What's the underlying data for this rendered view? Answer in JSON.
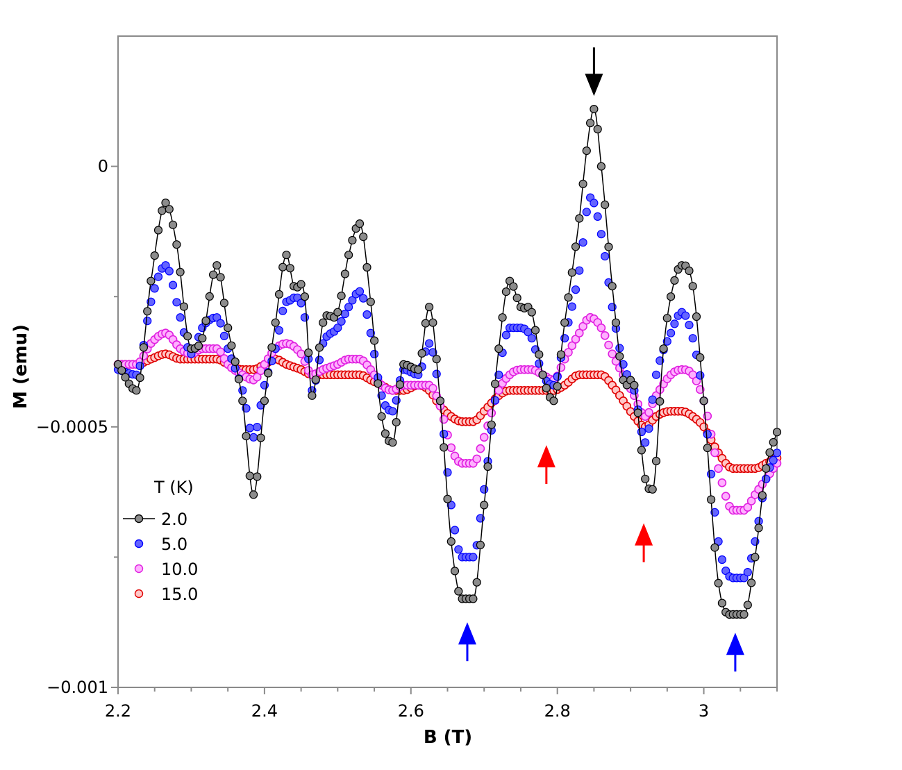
{
  "chart_data": {
    "type": "scatter",
    "title": "",
    "xlabel": "B (T)",
    "ylabel": "M (emu)",
    "xlim": [
      2.2,
      3.1
    ],
    "ylim": [
      -0.001,
      0.00025
    ],
    "x_ticks": [
      2.2,
      2.4,
      2.6,
      2.8,
      3.0
    ],
    "x_tick_labels": [
      "2.2",
      "2.4",
      "2.6",
      "2.8",
      "3"
    ],
    "x_minor_step": 0.05,
    "y_ticks": [
      0,
      -0.0005,
      -0.001
    ],
    "y_tick_labels": [
      "0",
      "−0.0005",
      "−0.001"
    ],
    "y_minor_ticks": [
      -0.00025,
      -0.00075
    ],
    "legend_title": "T (K)",
    "legend_position": "bottom-left",
    "series": [
      {
        "name": "2.0",
        "color": "#000000",
        "fill": "#8c8c8c",
        "marker": "filled-circle",
        "line": true,
        "keypoints": [
          [
            2.2,
            -0.00038
          ],
          [
            2.225,
            -0.00043
          ],
          [
            2.245,
            -0.00022
          ],
          [
            2.265,
            -7e-05
          ],
          [
            2.28,
            -0.00015
          ],
          [
            2.3,
            -0.00035
          ],
          [
            2.315,
            -0.00033
          ],
          [
            2.335,
            -0.00019
          ],
          [
            2.35,
            -0.00031
          ],
          [
            2.37,
            -0.00045
          ],
          [
            2.385,
            -0.00063
          ],
          [
            2.4,
            -0.00045
          ],
          [
            2.415,
            -0.0003
          ],
          [
            2.43,
            -0.00017
          ],
          [
            2.44,
            -0.00023
          ],
          [
            2.455,
            -0.00025
          ],
          [
            2.465,
            -0.00044
          ],
          [
            2.48,
            -0.0003
          ],
          [
            2.5,
            -0.00028
          ],
          [
            2.515,
            -0.00017
          ],
          [
            2.53,
            -0.00011
          ],
          [
            2.545,
            -0.00026
          ],
          [
            2.56,
            -0.00048
          ],
          [
            2.575,
            -0.00053
          ],
          [
            2.59,
            -0.00038
          ],
          [
            2.61,
            -0.00039
          ],
          [
            2.625,
            -0.00027
          ],
          [
            2.64,
            -0.00045
          ],
          [
            2.655,
            -0.00072
          ],
          [
            2.67,
            -0.00083
          ],
          [
            2.685,
            -0.00083
          ],
          [
            2.7,
            -0.00065
          ],
          [
            2.72,
            -0.00035
          ],
          [
            2.735,
            -0.00022
          ],
          [
            2.75,
            -0.00027
          ],
          [
            2.765,
            -0.00028
          ],
          [
            2.78,
            -0.0004
          ],
          [
            2.795,
            -0.00045
          ],
          [
            2.81,
            -0.0003
          ],
          [
            2.83,
            -0.0001
          ],
          [
            2.84,
            3e-05
          ],
          [
            2.85,
            0.00011
          ],
          [
            2.86,
            0.0
          ],
          [
            2.875,
            -0.00023
          ],
          [
            2.89,
            -0.00041
          ],
          [
            2.905,
            -0.00042
          ],
          [
            2.92,
            -0.0006
          ],
          [
            2.93,
            -0.00062
          ],
          [
            2.945,
            -0.00035
          ],
          [
            2.955,
            -0.00025
          ],
          [
            2.97,
            -0.00019
          ],
          [
            2.985,
            -0.00023
          ],
          [
            3.0,
            -0.00045
          ],
          [
            3.02,
            -0.0008
          ],
          [
            3.04,
            -0.00086
          ],
          [
            3.055,
            -0.00086
          ],
          [
            3.07,
            -0.00075
          ],
          [
            3.085,
            -0.00058
          ],
          [
            3.1,
            -0.00051
          ]
        ]
      },
      {
        "name": "5.0",
        "color": "#0000ff",
        "fill": "#6464ff",
        "marker": "filled-circle",
        "line": false,
        "keypoints": [
          [
            2.2,
            -0.00039
          ],
          [
            2.225,
            -0.0004
          ],
          [
            2.245,
            -0.00026
          ],
          [
            2.265,
            -0.00019
          ],
          [
            2.285,
            -0.00029
          ],
          [
            2.3,
            -0.00036
          ],
          [
            2.315,
            -0.00031
          ],
          [
            2.335,
            -0.00029
          ],
          [
            2.35,
            -0.00035
          ],
          [
            2.37,
            -0.00043
          ],
          [
            2.385,
            -0.00052
          ],
          [
            2.4,
            -0.00042
          ],
          [
            2.415,
            -0.00035
          ],
          [
            2.43,
            -0.00026
          ],
          [
            2.455,
            -0.00029
          ],
          [
            2.465,
            -0.00043
          ],
          [
            2.48,
            -0.00034
          ],
          [
            2.5,
            -0.00031
          ],
          [
            2.515,
            -0.00027
          ],
          [
            2.53,
            -0.00024
          ],
          [
            2.545,
            -0.00032
          ],
          [
            2.56,
            -0.00044
          ],
          [
            2.575,
            -0.00047
          ],
          [
            2.59,
            -0.00039
          ],
          [
            2.61,
            -0.0004
          ],
          [
            2.625,
            -0.00034
          ],
          [
            2.64,
            -0.00045
          ],
          [
            2.655,
            -0.00065
          ],
          [
            2.67,
            -0.00075
          ],
          [
            2.685,
            -0.00075
          ],
          [
            2.7,
            -0.00062
          ],
          [
            2.72,
            -0.0004
          ],
          [
            2.735,
            -0.00031
          ],
          [
            2.75,
            -0.00031
          ],
          [
            2.765,
            -0.00033
          ],
          [
            2.78,
            -0.0004
          ],
          [
            2.795,
            -0.00042
          ],
          [
            2.81,
            -0.00033
          ],
          [
            2.83,
            -0.0002
          ],
          [
            2.845,
            -6e-05
          ],
          [
            2.86,
            -0.00013
          ],
          [
            2.875,
            -0.00027
          ],
          [
            2.89,
            -0.00038
          ],
          [
            2.905,
            -0.00043
          ],
          [
            2.92,
            -0.00053
          ],
          [
            2.935,
            -0.0004
          ],
          [
            2.955,
            -0.00032
          ],
          [
            2.97,
            -0.00028
          ],
          [
            2.985,
            -0.00033
          ],
          [
            3.0,
            -0.00045
          ],
          [
            3.02,
            -0.00072
          ],
          [
            3.04,
            -0.00079
          ],
          [
            3.055,
            -0.00079
          ],
          [
            3.07,
            -0.00072
          ],
          [
            3.085,
            -0.0006
          ],
          [
            3.1,
            -0.00055
          ]
        ]
      },
      {
        "name": "10.0",
        "color": "#e020e0",
        "fill": "#ffb0ff",
        "marker": "open-circle",
        "line": false,
        "keypoints": [
          [
            2.2,
            -0.00038
          ],
          [
            2.225,
            -0.00038
          ],
          [
            2.245,
            -0.00034
          ],
          [
            2.265,
            -0.00032
          ],
          [
            2.285,
            -0.00035
          ],
          [
            2.3,
            -0.00036
          ],
          [
            2.315,
            -0.00035
          ],
          [
            2.335,
            -0.00035
          ],
          [
            2.35,
            -0.00038
          ],
          [
            2.37,
            -0.0004
          ],
          [
            2.385,
            -0.00041
          ],
          [
            2.4,
            -0.00038
          ],
          [
            2.415,
            -0.00035
          ],
          [
            2.43,
            -0.00034
          ],
          [
            2.45,
            -0.00036
          ],
          [
            2.465,
            -0.0004
          ],
          [
            2.48,
            -0.00039
          ],
          [
            2.5,
            -0.00038
          ],
          [
            2.515,
            -0.00037
          ],
          [
            2.53,
            -0.00037
          ],
          [
            2.545,
            -0.00039
          ],
          [
            2.56,
            -0.00042
          ],
          [
            2.575,
            -0.00043
          ],
          [
            2.59,
            -0.00042
          ],
          [
            2.61,
            -0.00042
          ],
          [
            2.625,
            -0.00042
          ],
          [
            2.64,
            -0.00046
          ],
          [
            2.655,
            -0.00054
          ],
          [
            2.67,
            -0.00057
          ],
          [
            2.685,
            -0.00057
          ],
          [
            2.7,
            -0.00052
          ],
          [
            2.72,
            -0.00043
          ],
          [
            2.735,
            -0.0004
          ],
          [
            2.75,
            -0.00039
          ],
          [
            2.765,
            -0.00039
          ],
          [
            2.78,
            -0.0004
          ],
          [
            2.795,
            -0.00041
          ],
          [
            2.81,
            -0.00037
          ],
          [
            2.83,
            -0.00032
          ],
          [
            2.845,
            -0.00029
          ],
          [
            2.86,
            -0.00031
          ],
          [
            2.875,
            -0.00036
          ],
          [
            2.89,
            -0.0004
          ],
          [
            2.905,
            -0.00044
          ],
          [
            2.92,
            -0.00048
          ],
          [
            2.935,
            -0.00044
          ],
          [
            2.955,
            -0.0004
          ],
          [
            2.97,
            -0.00039
          ],
          [
            2.985,
            -0.0004
          ],
          [
            3.0,
            -0.00045
          ],
          [
            3.02,
            -0.00058
          ],
          [
            3.04,
            -0.00066
          ],
          [
            3.055,
            -0.00066
          ],
          [
            3.07,
            -0.00063
          ],
          [
            3.085,
            -0.0006
          ],
          [
            3.1,
            -0.00057
          ]
        ]
      },
      {
        "name": "15.0",
        "color": "#e00000",
        "fill": "#ffc8c8",
        "marker": "open-circle",
        "line": false,
        "keypoints": [
          [
            2.2,
            -0.00038
          ],
          [
            2.225,
            -0.00038
          ],
          [
            2.245,
            -0.00037
          ],
          [
            2.265,
            -0.00036
          ],
          [
            2.285,
            -0.00037
          ],
          [
            2.3,
            -0.00037
          ],
          [
            2.315,
            -0.00037
          ],
          [
            2.335,
            -0.00037
          ],
          [
            2.35,
            -0.00038
          ],
          [
            2.37,
            -0.00039
          ],
          [
            2.385,
            -0.00039
          ],
          [
            2.4,
            -0.00038
          ],
          [
            2.415,
            -0.00037
          ],
          [
            2.43,
            -0.00038
          ],
          [
            2.45,
            -0.00039
          ],
          [
            2.465,
            -0.0004
          ],
          [
            2.48,
            -0.0004
          ],
          [
            2.5,
            -0.0004
          ],
          [
            2.515,
            -0.0004
          ],
          [
            2.53,
            -0.0004
          ],
          [
            2.545,
            -0.00041
          ],
          [
            2.56,
            -0.00042
          ],
          [
            2.575,
            -0.00043
          ],
          [
            2.59,
            -0.00043
          ],
          [
            2.61,
            -0.00042
          ],
          [
            2.625,
            -0.00043
          ],
          [
            2.64,
            -0.00046
          ],
          [
            2.655,
            -0.00048
          ],
          [
            2.67,
            -0.00049
          ],
          [
            2.685,
            -0.00049
          ],
          [
            2.7,
            -0.00047
          ],
          [
            2.72,
            -0.00044
          ],
          [
            2.735,
            -0.00043
          ],
          [
            2.75,
            -0.00043
          ],
          [
            2.765,
            -0.00043
          ],
          [
            2.78,
            -0.00043
          ],
          [
            2.795,
            -0.00043
          ],
          [
            2.81,
            -0.00042
          ],
          [
            2.83,
            -0.0004
          ],
          [
            2.845,
            -0.0004
          ],
          [
            2.86,
            -0.0004
          ],
          [
            2.875,
            -0.00042
          ],
          [
            2.89,
            -0.00045
          ],
          [
            2.905,
            -0.00048
          ],
          [
            2.92,
            -0.0005
          ],
          [
            2.935,
            -0.00048
          ],
          [
            2.955,
            -0.00047
          ],
          [
            2.97,
            -0.00047
          ],
          [
            2.985,
            -0.00048
          ],
          [
            3.0,
            -0.0005
          ],
          [
            3.02,
            -0.00055
          ],
          [
            3.04,
            -0.00058
          ],
          [
            3.055,
            -0.00058
          ],
          [
            3.07,
            -0.00058
          ],
          [
            3.085,
            -0.00057
          ],
          [
            3.1,
            -0.00056
          ]
        ]
      }
    ],
    "annotations": [
      {
        "type": "arrow-down",
        "color": "#000000",
        "x": 2.85,
        "y": 0.000135
      },
      {
        "type": "arrow-up",
        "color": "#ff0000",
        "x": 2.785,
        "y": -0.000535
      },
      {
        "type": "arrow-up",
        "color": "#ff0000",
        "x": 2.918,
        "y": -0.000685
      },
      {
        "type": "arrow-up",
        "color": "#0000ff",
        "x": 2.677,
        "y": -0.000875
      },
      {
        "type": "arrow-up",
        "color": "#0000ff",
        "x": 3.043,
        "y": -0.000895
      }
    ]
  }
}
